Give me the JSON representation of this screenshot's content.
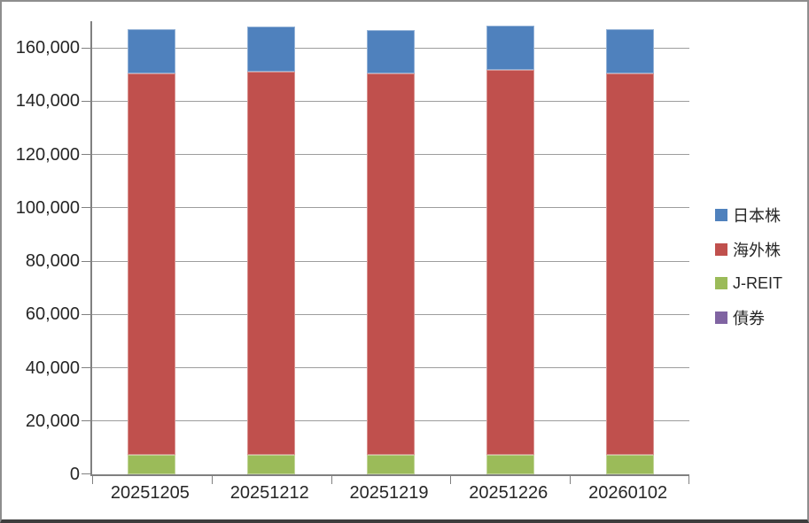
{
  "chart_data": {
    "type": "bar",
    "stacked": true,
    "title": "",
    "xlabel": "",
    "ylabel": "",
    "grid": true,
    "legend_position": "right",
    "categories": [
      "20251205",
      "20251212",
      "20251219",
      "20251226",
      "20260102"
    ],
    "series": [
      {
        "name": "日本株",
        "color": "#4F81BD",
        "values": [
          16600,
          16800,
          16300,
          16800,
          16600
        ]
      },
      {
        "name": "海外株",
        "color": "#C0504D",
        "values": [
          143200,
          143700,
          143000,
          144200,
          143100
        ]
      },
      {
        "name": "J-REIT",
        "color": "#9BBB59",
        "values": [
          7300,
          7400,
          7400,
          7400,
          7400
        ]
      },
      {
        "name": "債券",
        "color": "#8064A2",
        "values": [
          0,
          0,
          0,
          0,
          0
        ]
      }
    ],
    "stack_order_bottom_to_top": [
      "債券",
      "J-REIT",
      "海外株",
      "日本株"
    ],
    "ylim": [
      0,
      170000
    ],
    "ytick_interval": 20000,
    "yticks": [
      {
        "value": 0,
        "label": "0"
      },
      {
        "value": 20000,
        "label": "20,000"
      },
      {
        "value": 40000,
        "label": "40,000"
      },
      {
        "value": 60000,
        "label": "60,000"
      },
      {
        "value": 80000,
        "label": "80,000"
      },
      {
        "value": 100000,
        "label": "100,000"
      },
      {
        "value": 120000,
        "label": "120,000"
      },
      {
        "value": 140000,
        "label": "140,000"
      },
      {
        "value": 160000,
        "label": "160,000"
      }
    ]
  },
  "colors": {
    "background": "#ffffff",
    "axis_line": "#808080",
    "gridline": "#9d9d9d",
    "text": "#262626",
    "frame_border": "#8e8e8e",
    "frame_border_bottom": "#3d3d3d"
  }
}
